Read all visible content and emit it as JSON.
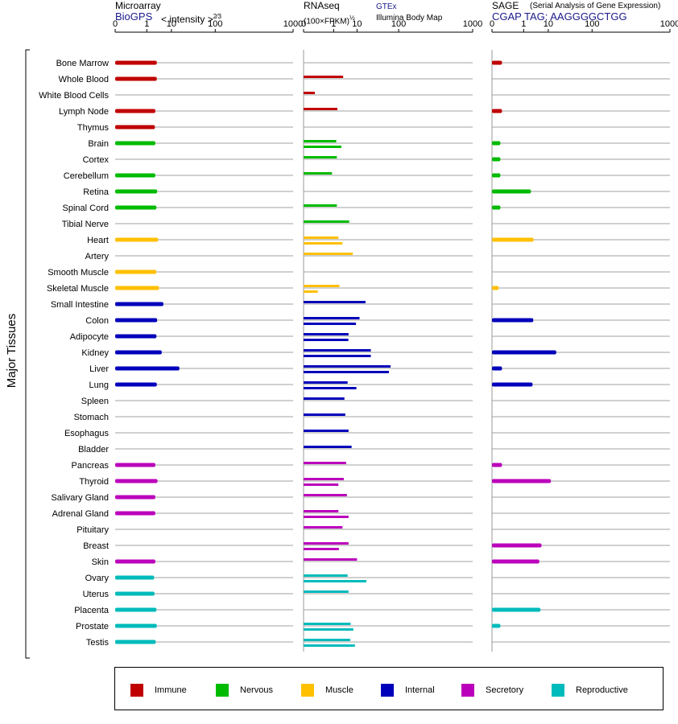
{
  "headers": {
    "microarray": {
      "title": "Microarray",
      "source": "BioGPS",
      "unit": "< intensity >",
      "unit_exp": "2⁄3"
    },
    "rnaseq": {
      "title": "RNAseq",
      "unit": "(100×FPKM)",
      "unit_exp": "½",
      "source1": "GTEx",
      "source2": "Illumina Body Map"
    },
    "sage": {
      "title": "SAGE",
      "subtitle": "(Serial Analysis of Gene Expression)",
      "source": "CGAP  TAG: AAGGGGCTGG"
    }
  },
  "axis_label": "Major Tissues",
  "legend": [
    {
      "label": "Immune",
      "color": "#c00000"
    },
    {
      "label": "Nervous",
      "color": "#00bb00"
    },
    {
      "label": "Muscle",
      "color": "#ffc000"
    },
    {
      "label": "Internal",
      "color": "#0000bb"
    },
    {
      "label": "Secretory",
      "color": "#bb00bb"
    },
    {
      "label": "Reproductive",
      "color": "#00bbbb"
    }
  ],
  "chart_data": {
    "type": "bar",
    "scale": "power",
    "ticks": [
      0,
      1,
      10,
      100,
      1000
    ],
    "xlim": [
      0,
      1000
    ],
    "panels": [
      "Microarray",
      "RNAseq",
      "SAGE"
    ],
    "tissues": [
      {
        "name": "Bone Marrow",
        "group": "Immune",
        "microarray": [
          3
        ],
        "rnaseq": [],
        "sage": [
          0.01
        ]
      },
      {
        "name": "Whole Blood",
        "group": "Immune",
        "microarray": [
          3
        ],
        "rnaseq": [
          3
        ],
        "sage": []
      },
      {
        "name": "White Blood Cells",
        "group": "Immune",
        "microarray": [],
        "rnaseq": [
          0.02
        ],
        "sage": []
      },
      {
        "name": "Lymph Node",
        "group": "Immune",
        "microarray": [
          2.6
        ],
        "rnaseq": [
          1.6
        ],
        "sage": [
          0.01
        ]
      },
      {
        "name": "Thymus",
        "group": "Immune",
        "microarray": [
          2.5
        ],
        "rnaseq": [],
        "sage": []
      },
      {
        "name": "Brain",
        "group": "Nervous",
        "microarray": [
          2.6
        ],
        "rnaseq": [
          1.4,
          2.5
        ],
        "sage": [
          0.005
        ]
      },
      {
        "name": "Cortex",
        "group": "Nervous",
        "microarray": [],
        "rnaseq": [
          1.5
        ],
        "sage": [
          0.005
        ]
      },
      {
        "name": "Cerebellum",
        "group": "Nervous",
        "microarray": [
          2.6
        ],
        "rnaseq": [
          0.8
        ],
        "sage": [
          0.005
        ]
      },
      {
        "name": "Retina",
        "group": "Nervous",
        "microarray": [
          3.1
        ],
        "rnaseq": [],
        "sage": [
          2.3
        ]
      },
      {
        "name": "Spinal Cord",
        "group": "Nervous",
        "microarray": [
          2.9
        ],
        "rnaseq": [
          1.5
        ],
        "sage": [
          0.005
        ]
      },
      {
        "name": "Tibial Nerve",
        "group": "Nervous",
        "microarray": [],
        "rnaseq": [
          5.3
        ],
        "sage": []
      },
      {
        "name": "Heart",
        "group": "Muscle",
        "microarray": [
          3.4
        ],
        "rnaseq": [
          1.8,
          2.8
        ],
        "sage": [
          3
        ]
      },
      {
        "name": "Artery",
        "group": "Muscle",
        "microarray": [],
        "rnaseq": [
          7.2
        ],
        "sage": []
      },
      {
        "name": "Smooth Muscle",
        "group": "Muscle",
        "microarray": [
          2.9
        ],
        "rnaseq": [],
        "sage": []
      },
      {
        "name": "Skeletal Muscle",
        "group": "Muscle",
        "microarray": [
          3.7
        ],
        "rnaseq": [
          2,
          0.05
        ],
        "sage": [
          0.002
        ]
      },
      {
        "name": "Small Intestine",
        "group": "Internal",
        "microarray": [
          5.4
        ],
        "rnaseq": [
          18
        ],
        "sage": []
      },
      {
        "name": "Colon",
        "group": "Internal",
        "microarray": [
          3.1
        ],
        "rnaseq": [
          12,
          9.2
        ],
        "sage": [
          2.9
        ]
      },
      {
        "name": "Adipocyte",
        "group": "Internal",
        "microarray": [
          2.9
        ],
        "rnaseq": [
          5,
          4.9
        ],
        "sage": []
      },
      {
        "name": "Kidney",
        "group": "Internal",
        "microarray": [
          4.7
        ],
        "rnaseq": [
          25,
          25
        ],
        "sage": [
          17
        ]
      },
      {
        "name": "Liver",
        "group": "Internal",
        "microarray": [
          17
        ],
        "rnaseq": [
          70,
          65
        ],
        "sage": [
          0.01
        ]
      },
      {
        "name": "Lung",
        "group": "Internal",
        "microarray": [
          3
        ],
        "rnaseq": [
          4.6,
          9.5
        ],
        "sage": [
          2.7
        ]
      },
      {
        "name": "Spleen",
        "group": "Internal",
        "microarray": [],
        "rnaseq": [
          3.4
        ],
        "sage": []
      },
      {
        "name": "Stomach",
        "group": "Internal",
        "microarray": [],
        "rnaseq": [
          3.7
        ],
        "sage": []
      },
      {
        "name": "Esophagus",
        "group": "Internal",
        "microarray": [],
        "rnaseq": [
          5
        ],
        "sage": []
      },
      {
        "name": "Bladder",
        "group": "Internal",
        "microarray": [],
        "rnaseq": [
          6.5
        ],
        "sage": []
      },
      {
        "name": "Pancreas",
        "group": "Secretory",
        "microarray": [
          2.6
        ],
        "rnaseq": [
          4
        ],
        "sage": [
          0.01
        ]
      },
      {
        "name": "Thyroid",
        "group": "Secretory",
        "microarray": [
          3.2
        ],
        "rnaseq": [
          3.2,
          1.8
        ],
        "sage": [
          12
        ]
      },
      {
        "name": "Salivary Gland",
        "group": "Secretory",
        "microarray": [
          2.6
        ],
        "rnaseq": [
          4.3
        ],
        "sage": []
      },
      {
        "name": "Adrenal Gland",
        "group": "Secretory",
        "microarray": [
          2.6
        ],
        "rnaseq": [
          1.8,
          5
        ],
        "sage": []
      },
      {
        "name": "Pituitary",
        "group": "Secretory",
        "microarray": [],
        "rnaseq": [
          2.8
        ],
        "sage": []
      },
      {
        "name": "Breast",
        "group": "Secretory",
        "microarray": [],
        "rnaseq": [
          5,
          1.9
        ],
        "sage": [
          6
        ]
      },
      {
        "name": "Skin",
        "group": "Secretory",
        "microarray": [
          2.6
        ],
        "rnaseq": [
          10
        ],
        "sage": [
          5
        ]
      },
      {
        "name": "Ovary",
        "group": "Reproductive",
        "microarray": [
          2.3
        ],
        "rnaseq": [
          4.6,
          19
        ],
        "sage": []
      },
      {
        "name": "Uterus",
        "group": "Reproductive",
        "microarray": [
          2.4
        ],
        "rnaseq": [
          5
        ],
        "sage": []
      },
      {
        "name": "Placenta",
        "group": "Reproductive",
        "microarray": [
          2.9
        ],
        "rnaseq": [],
        "sage": [
          5.5
        ]
      },
      {
        "name": "Prostate",
        "group": "Reproductive",
        "microarray": [
          3
        ],
        "rnaseq": [
          6,
          7.5
        ],
        "sage": [
          0.005
        ]
      },
      {
        "name": "Testis",
        "group": "Reproductive",
        "microarray": [
          2.7
        ],
        "rnaseq": [
          5.8,
          8.5
        ],
        "sage": []
      }
    ]
  }
}
